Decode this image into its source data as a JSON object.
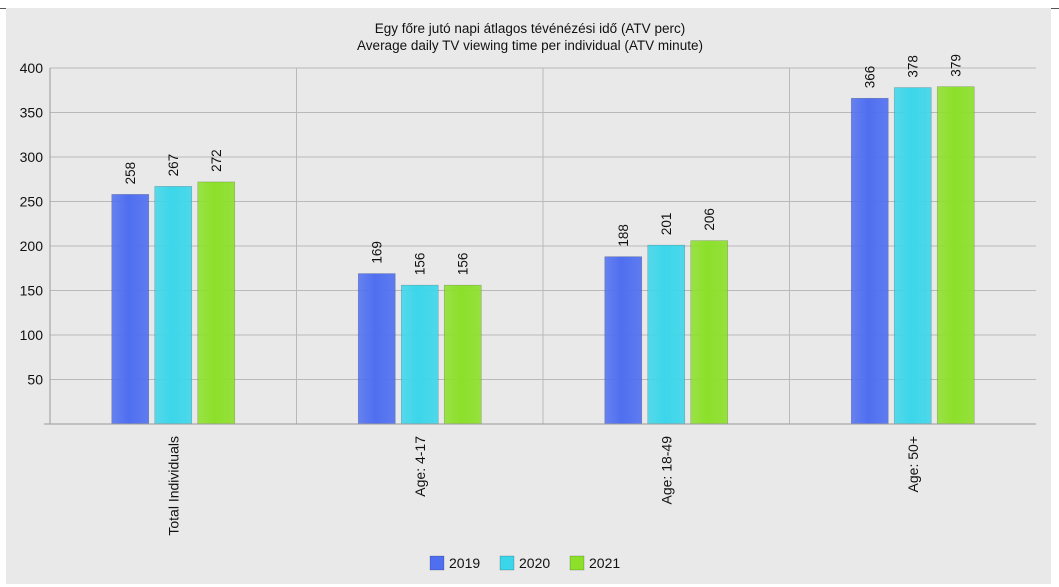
{
  "chart_data": {
    "type": "bar",
    "title": "Egy főre jutó napi átlagos tévénézési idő (ATV perc)",
    "subtitle": "Average daily TV viewing time per individual (ATV minute)",
    "categories": [
      "Total Individuals",
      "Age: 4-17",
      "Age: 18-49",
      "Age: 50+"
    ],
    "series": [
      {
        "name": "2019",
        "values": [
          258,
          169,
          188,
          366
        ],
        "color": "#4f6ff0"
      },
      {
        "name": "2020",
        "values": [
          267,
          156,
          201,
          378
        ],
        "color": "#3cd6ea"
      },
      {
        "name": "2021",
        "values": [
          272,
          156,
          206,
          379
        ],
        "color": "#8ce02a"
      }
    ],
    "ylim": [
      0,
      400
    ],
    "yticks": [
      50,
      100,
      150,
      200,
      250,
      300,
      350,
      400
    ],
    "grid": true,
    "legend_position": "bottom",
    "data_labels": "rotated-vertical"
  }
}
